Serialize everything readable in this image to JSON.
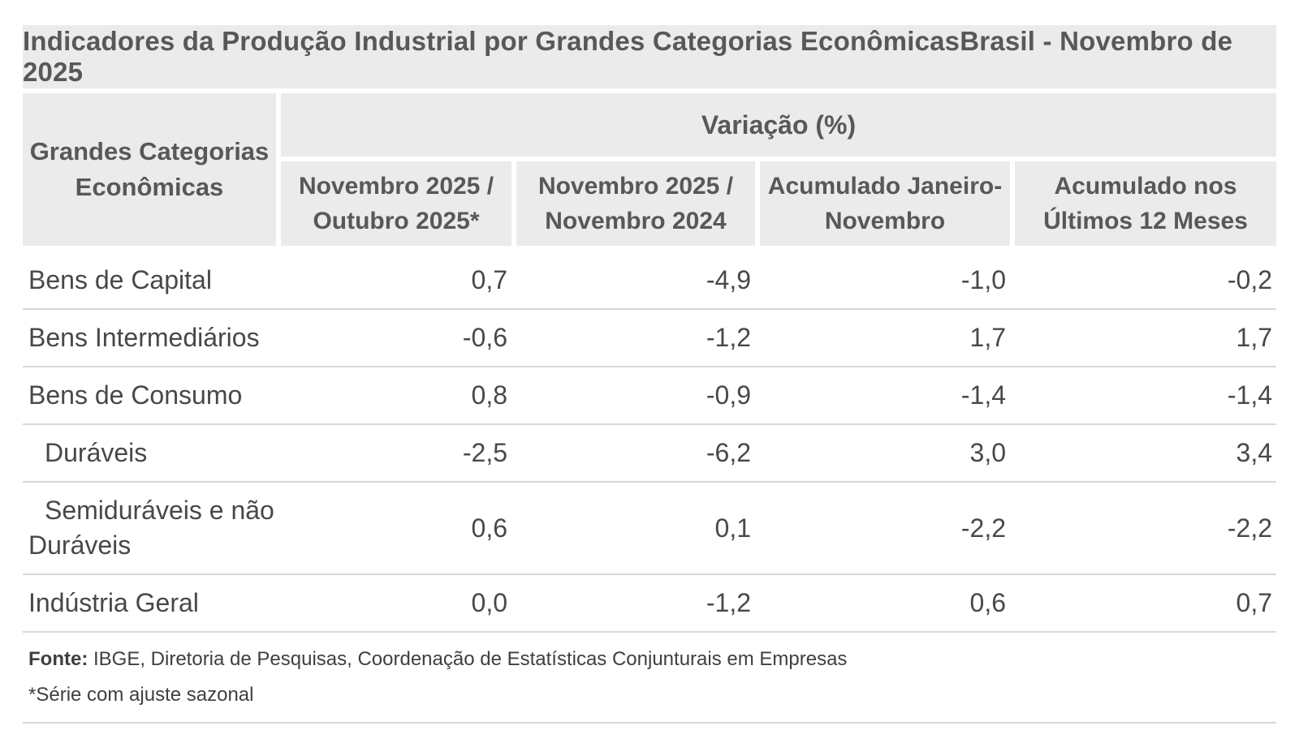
{
  "title": "Indicadores da Produção Industrial por Grandes Categorias EconômicasBrasil - Novembro de 2025",
  "table": {
    "row_header": "Grandes Categorias\nEconômicas",
    "group_header": "Variação (%)",
    "columns": [
      "Novembro 2025 /\nOutubro 2025*",
      "Novembro 2025 /\nNovembro 2024",
      "Acumulado Janeiro-\nNovembro",
      "Acumulado nos\nÚltimos 12 Meses"
    ],
    "rows": [
      {
        "label": "Bens de Capital",
        "values": [
          "0,7",
          "-4,9",
          "-1,0",
          "-0,2"
        ]
      },
      {
        "label": "Bens Intermediários",
        "values": [
          "-0,6",
          "-1,2",
          "1,7",
          "1,7"
        ]
      },
      {
        "label": "Bens de Consumo",
        "values": [
          "0,8",
          "-0,9",
          "-1,4",
          "-1,4"
        ]
      },
      {
        "label": "Duráveis",
        "values": [
          "-2,5",
          "-6,2",
          "3,0",
          "3,4"
        ]
      },
      {
        "label": "Semiduráveis e não\nDuráveis",
        "values": [
          "0,6",
          "0,1",
          "-2,2",
          "-2,2"
        ]
      },
      {
        "label": "Indústria Geral",
        "values": [
          "0,0",
          "-1,2",
          "0,6",
          "0,7"
        ]
      }
    ]
  },
  "footer": {
    "source_label": "Fonte:",
    "source_text": " IBGE, Diretoria de Pesquisas, Coordenação de Estatísticas Conjunturais em Empresas",
    "note": "*Série com ajuste sazonal"
  },
  "colors": {
    "band_background": "#ebebeb",
    "header_text": "#58585a",
    "body_text": "#48484a",
    "divider": "#d9d9d9",
    "page_background": "#ffffff"
  },
  "chart_data": {
    "type": "table",
    "title": "Indicadores da Produção Industrial por Grandes Categorias EconômicasBrasil - Novembro de 2025",
    "row_header": "Grandes Categorias Econômicas",
    "value_group": "Variação (%)",
    "columns": [
      "Novembro 2025 / Outubro 2025*",
      "Novembro 2025 / Novembro 2024",
      "Acumulado Janeiro-Novembro",
      "Acumulado nos Últimos 12 Meses"
    ],
    "rows": [
      {
        "category": "Bens de Capital",
        "values": [
          0.7,
          -4.9,
          -1.0,
          -0.2
        ]
      },
      {
        "category": "Bens Intermediários",
        "values": [
          -0.6,
          -1.2,
          1.7,
          1.7
        ]
      },
      {
        "category": "Bens de Consumo",
        "values": [
          0.8,
          -0.9,
          -1.4,
          -1.4
        ]
      },
      {
        "category": "Duráveis",
        "values": [
          -2.5,
          -6.2,
          3.0,
          3.4
        ]
      },
      {
        "category": "Semiduráveis e não Duráveis",
        "values": [
          0.6,
          0.1,
          -2.2,
          -2.2
        ]
      },
      {
        "category": "Indústria Geral",
        "values": [
          0.0,
          -1.2,
          0.6,
          0.7
        ]
      }
    ],
    "source": "IBGE, Diretoria de Pesquisas, Coordenação de Estatísticas Conjunturais em Empresas",
    "note": "*Série com ajuste sazonal",
    "decimal_separator": ","
  }
}
